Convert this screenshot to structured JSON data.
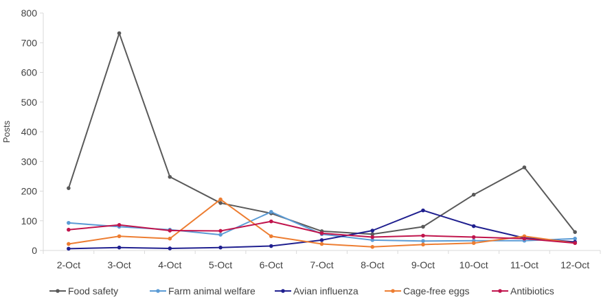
{
  "chart_data": {
    "type": "line",
    "title": "",
    "xlabel": "",
    "ylabel": "Posts",
    "ylim": [
      0,
      800
    ],
    "yticks": [
      0,
      100,
      200,
      300,
      400,
      500,
      600,
      700,
      800
    ],
    "grid": false,
    "legend_position": "bottom",
    "categories": [
      "2-Oct",
      "3-Oct",
      "4-Oct",
      "5-Oct",
      "6-Oct",
      "7-Oct",
      "8-Oct",
      "9-Oct",
      "10-Oct",
      "11-Oct",
      "12-Oct"
    ],
    "series": [
      {
        "name": "Food safety",
        "color": "#595959",
        "values": [
          210,
          732,
          248,
          160,
          125,
          65,
          55,
          80,
          188,
          280,
          62
        ]
      },
      {
        "name": "Farm animal welfare",
        "color": "#5b9bd5",
        "values": [
          93,
          80,
          70,
          53,
          130,
          55,
          35,
          32,
          33,
          33,
          40
        ]
      },
      {
        "name": "Avian influenza",
        "color": "#1f1f8f",
        "values": [
          6,
          10,
          7,
          10,
          15,
          35,
          67,
          135,
          82,
          42,
          29
        ]
      },
      {
        "name": "Cage-free eggs",
        "color": "#ed7d31",
        "values": [
          22,
          48,
          40,
          172,
          48,
          22,
          12,
          20,
          25,
          48,
          25
        ]
      },
      {
        "name": "Antibiotics",
        "color": "#c0144c",
        "values": [
          70,
          86,
          67,
          66,
          98,
          58,
          45,
          50,
          45,
          40,
          25
        ]
      }
    ]
  }
}
